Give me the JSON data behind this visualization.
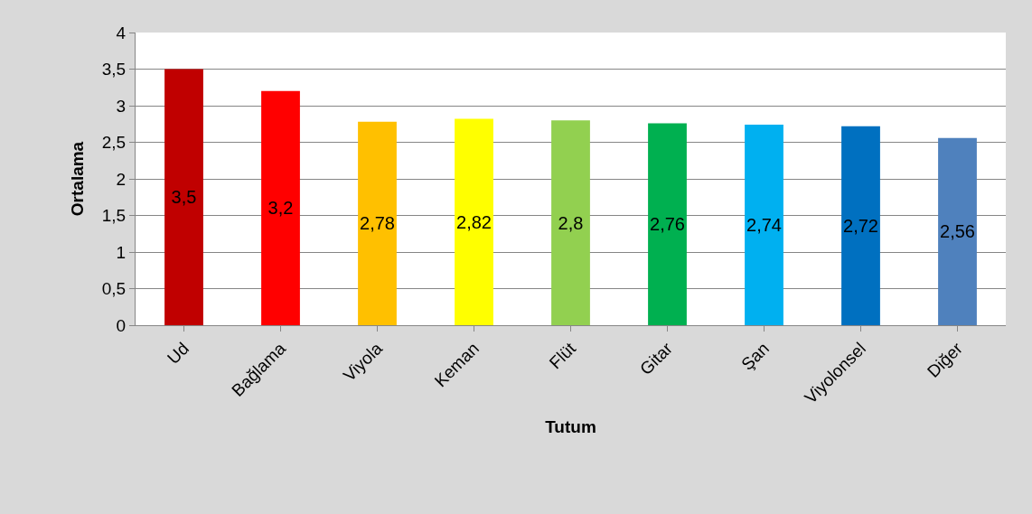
{
  "chart_data": {
    "type": "bar",
    "xlabel": "Tutum",
    "ylabel": "Ortalama",
    "categories": [
      "Ud",
      "Bağlama",
      "Viyola",
      "Keman",
      "Flüt",
      "Gitar",
      "Şan",
      "Viyolonsel",
      "Diğer"
    ],
    "values": [
      3.5,
      3.2,
      2.78,
      2.82,
      2.8,
      2.76,
      2.74,
      2.72,
      2.56
    ],
    "value_labels": [
      "3,5",
      "3,2",
      "2,78",
      "2,82",
      "2,8",
      "2,76",
      "2,74",
      "2,72",
      "2,56"
    ],
    "colors": [
      "#c00000",
      "#ff0000",
      "#ffc000",
      "#ffff00",
      "#92d050",
      "#00b050",
      "#00b0f0",
      "#0070c0",
      "#4f81bd"
    ],
    "ylim": [
      0,
      4
    ],
    "yticks": [
      0,
      {
        "value": 0.5,
        "label": "0,5"
      },
      1,
      {
        "value": 1.5,
        "label": "1,5"
      },
      2,
      {
        "value": 2.5,
        "label": "2,5"
      },
      3,
      {
        "value": 3.5,
        "label": "3,5"
      },
      4
    ],
    "grid": "y"
  }
}
